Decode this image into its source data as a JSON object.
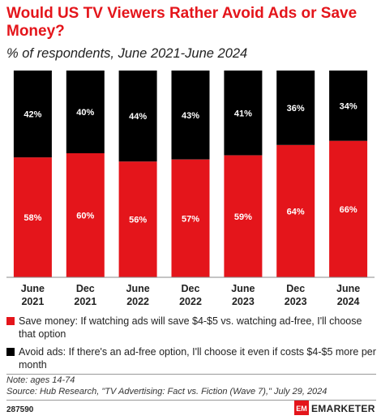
{
  "title": "Would US TV Viewers Rather Avoid Ads or Save Money?",
  "subtitle": "% of respondents, June 2021-June 2024",
  "chart_data": {
    "type": "bar",
    "stacked": true,
    "normalized": true,
    "categories": [
      [
        "June",
        "2021"
      ],
      [
        "Dec",
        "2021"
      ],
      [
        "June",
        "2022"
      ],
      [
        "Dec",
        "2022"
      ],
      [
        "June",
        "2023"
      ],
      [
        "Dec",
        "2023"
      ],
      [
        "June",
        "2024"
      ]
    ],
    "ylim": [
      0,
      100
    ],
    "grid": false,
    "legend_position": "bottom",
    "series": [
      {
        "name": "Save money: If watching ads will save $4-$5 vs. watching ad-free, I'll choose that option",
        "color": "#e4151b",
        "label_color": "#ffffff",
        "values": [
          58,
          60,
          56,
          57,
          59,
          64,
          66
        ],
        "labels": [
          "58%",
          "60%",
          "56%",
          "57%",
          "59%",
          "64%",
          "66%"
        ]
      },
      {
        "name": "Avoid ads: If there's an ad-free option, I'll choose it even if costs $4-$5 more per month",
        "color": "#000000",
        "label_color": "#ffffff",
        "values": [
          42,
          40,
          44,
          43,
          41,
          36,
          34
        ],
        "labels": [
          "42%",
          "40%",
          "44%",
          "43%",
          "41%",
          "36%",
          "34%"
        ]
      }
    ]
  },
  "legend": {
    "save_money_label": "Save money: If watching ads will save $4-$5 vs. watching ad-free, I'll choose that option",
    "avoid_ads_label": "Avoid ads: If there's an ad-free option, I'll choose it even if costs $4-$5 more per month"
  },
  "note": "Note: ages 14-74",
  "source": "Source: Hub Research, \"TV Advertising: Fact vs. Fiction (Wave 7),\" July 29, 2024",
  "footer_id": "287590",
  "brand_name": "EMARKETER",
  "brand_logo_text": "EM"
}
